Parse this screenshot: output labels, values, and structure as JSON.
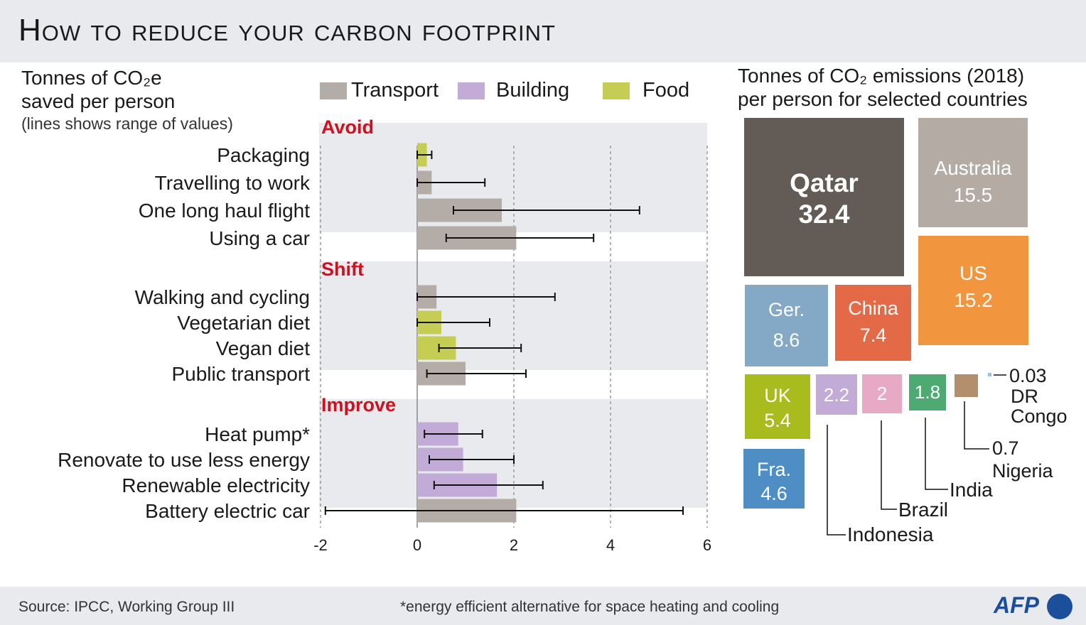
{
  "title": "How to reduce your carbon footprint",
  "left_heading": {
    "line1": "Tonnes of CO₂e",
    "line2": "saved per person",
    "note": "(lines shows range of values)"
  },
  "legend": [
    {
      "label": "Transport",
      "color": "#b4aca6"
    },
    {
      "label": "Building",
      "color": "#c3abd7"
    },
    {
      "label": "Food",
      "color": "#c5cd52"
    }
  ],
  "chart_data": [
    {
      "type": "bar",
      "orientation": "horizontal",
      "xlim": [
        -2,
        6
      ],
      "xticks": [
        "-2",
        "0",
        "2",
        "4",
        "6"
      ],
      "colors": {
        "Transport": "#b4aca6",
        "Building": "#c3abd7",
        "Food": "#c5cd52"
      },
      "groups": [
        {
          "label": "Avoid",
          "items": [
            {
              "category": "Packaging",
              "type": "Food",
              "value": 0.2,
              "range": [
                0.0,
                0.3
              ]
            },
            {
              "category": "Travelling to work",
              "type": "Transport",
              "value": 0.3,
              "range": [
                0.0,
                1.4
              ]
            },
            {
              "category": "One long haul flight",
              "type": "Transport",
              "value": 1.75,
              "range": [
                0.75,
                4.6
              ]
            },
            {
              "category": "Using a car",
              "type": "Transport",
              "value": 2.05,
              "range": [
                0.6,
                3.65
              ]
            }
          ]
        },
        {
          "label": "Shift",
          "items": [
            {
              "category": "Walking and cycling",
              "type": "Transport",
              "value": 0.4,
              "range": [
                0.0,
                2.85
              ]
            },
            {
              "category": "Vegetarian diet",
              "type": "Food",
              "value": 0.5,
              "range": [
                0.0,
                1.5
              ]
            },
            {
              "category": "Vegan diet",
              "type": "Food",
              "value": 0.8,
              "range": [
                0.45,
                2.15
              ]
            },
            {
              "category": "Public transport",
              "type": "Transport",
              "value": 1.0,
              "range": [
                0.2,
                2.25
              ]
            }
          ]
        },
        {
          "label": "Improve",
          "items": [
            {
              "category": "Heat pump*",
              "type": "Building",
              "value": 0.85,
              "range": [
                0.15,
                1.35
              ]
            },
            {
              "category": "Renovate to use less energy",
              "type": "Building",
              "value": 0.95,
              "range": [
                0.25,
                2.0
              ]
            },
            {
              "category": "Renewable electricity",
              "type": "Building",
              "value": 1.65,
              "range": [
                0.35,
                2.6
              ]
            },
            {
              "category": "Battery electric car",
              "type": "Transport",
              "value": 2.05,
              "range": [
                -1.9,
                5.5
              ]
            }
          ]
        }
      ]
    },
    {
      "type": "treemap",
      "title": "Tonnes of CO₂ emissions (2018) per person for selected countries",
      "items": [
        {
          "name": "Qatar",
          "value_label": "32.4",
          "value": 32.4,
          "color": "#635c56"
        },
        {
          "name": "Australia",
          "value_label": "15.5",
          "value": 15.5,
          "color": "#b3aba4"
        },
        {
          "name": "US",
          "value_label": "15.2",
          "value": 15.2,
          "color": "#f1953f"
        },
        {
          "name": "Ger.",
          "value_label": "8.6",
          "value": 8.6,
          "color": "#83a9c6"
        },
        {
          "name": "China",
          "value_label": "7.4",
          "value": 7.4,
          "color": "#e46a47"
        },
        {
          "name": "UK",
          "value_label": "5.4",
          "value": 5.4,
          "color": "#a8bc1e"
        },
        {
          "name": "Fra.",
          "value_label": "4.6",
          "value": 4.6,
          "color": "#4f8ec4"
        },
        {
          "name": "Indonesia",
          "value_label": "2.2",
          "value": 2.2,
          "color": "#c3abd7"
        },
        {
          "name": "Brazil",
          "value_label": "2",
          "value": 2.0,
          "color": "#e7a9c4"
        },
        {
          "name": "India",
          "value_label": "1.8",
          "value": 1.8,
          "color": "#4eaa73"
        },
        {
          "name": "Nigeria",
          "value_label": "0.7",
          "value": 0.7,
          "color": "#b38f6d"
        },
        {
          "name": "DR Congo",
          "value_label": "0.03",
          "value": 0.03,
          "color": "#8ec4e4"
        }
      ]
    }
  ],
  "right_heading": {
    "line1": "Tonnes of CO₂ emissions (2018)",
    "line2": "per person for selected countries"
  },
  "footer": {
    "source": "Source: IPCC, Working Group III",
    "note": "*energy efficient alternative for space heating and cooling",
    "logo": "AFP"
  }
}
